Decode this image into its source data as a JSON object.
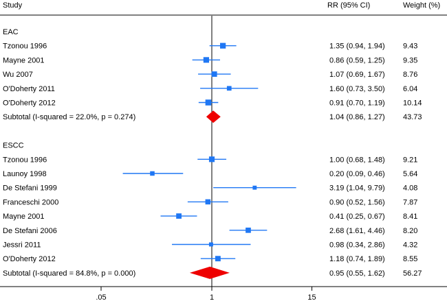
{
  "chart_data": {
    "type": "forest",
    "scale": "log",
    "reference_value": 1,
    "xlim": [
      0.0333,
      20
    ],
    "x_ticks": [
      {
        "value": 0.05,
        "label": ".05"
      },
      {
        "value": 1,
        "label": "1"
      },
      {
        "value": 15,
        "label": "15"
      }
    ],
    "headers": {
      "study": "Study",
      "rr": "RR (95% CI)",
      "weight": "Weight (%)"
    },
    "colors": {
      "study_marker": "#1f77f4",
      "ci_line": "#1f77f4",
      "subtotal_diamond": "#ee0000",
      "reference_line": "#000000"
    },
    "groups": [
      {
        "name": "EAC",
        "studies": [
          {
            "study": "Tzonou 1996",
            "rr": 1.35,
            "lo": 0.94,
            "hi": 1.94,
            "rr_text": "1.35 (0.94, 1.94)",
            "weight": 9.43,
            "weight_text": "9.43"
          },
          {
            "study": "Mayne 2001",
            "rr": 0.86,
            "lo": 0.59,
            "hi": 1.25,
            "rr_text": "0.86 (0.59, 1.25)",
            "weight": 9.35,
            "weight_text": "9.35"
          },
          {
            "study": "Wu 2007",
            "rr": 1.07,
            "lo": 0.69,
            "hi": 1.67,
            "rr_text": "1.07 (0.69, 1.67)",
            "weight": 8.76,
            "weight_text": "8.76"
          },
          {
            "study": "O'Doherty 2011",
            "rr": 1.6,
            "lo": 0.73,
            "hi": 3.5,
            "rr_text": "1.60 (0.73, 3.50)",
            "weight": 6.04,
            "weight_text": "6.04"
          },
          {
            "study": "O'Doherty 2012",
            "rr": 0.91,
            "lo": 0.7,
            "hi": 1.19,
            "rr_text": "0.91 (0.70, 1.19)",
            "weight": 10.14,
            "weight_text": "10.14"
          }
        ],
        "subtotal": {
          "label": "Subtotal  (I-squared = 22.0%, p = 0.274)",
          "rr": 1.04,
          "lo": 0.86,
          "hi": 1.27,
          "rr_text": "1.04 (0.86, 1.27)",
          "weight_text": "43.73"
        }
      },
      {
        "name": "ESCC",
        "studies": [
          {
            "study": "Tzonou 1996",
            "rr": 1.0,
            "lo": 0.68,
            "hi": 1.48,
            "rr_text": "1.00 (0.68, 1.48)",
            "weight": 9.21,
            "weight_text": "9.21"
          },
          {
            "study": "Launoy 1998",
            "rr": 0.2,
            "lo": 0.09,
            "hi": 0.46,
            "rr_text": "0.20 (0.09, 0.46)",
            "weight": 5.64,
            "weight_text": "5.64"
          },
          {
            "study": "De Stefani 1999",
            "rr": 3.19,
            "lo": 1.04,
            "hi": 9.79,
            "rr_text": "3.19 (1.04, 9.79)",
            "weight": 4.08,
            "weight_text": "4.08"
          },
          {
            "study": "Franceschi 2000",
            "rr": 0.9,
            "lo": 0.52,
            "hi": 1.56,
            "rr_text": "0.90 (0.52, 1.56)",
            "weight": 7.87,
            "weight_text": "7.87"
          },
          {
            "study": "Mayne 2001",
            "rr": 0.41,
            "lo": 0.25,
            "hi": 0.67,
            "rr_text": "0.41 (0.25, 0.67)",
            "weight": 8.41,
            "weight_text": "8.41"
          },
          {
            "study": "De Stefani 2006",
            "rr": 2.68,
            "lo": 1.61,
            "hi": 4.46,
            "rr_text": "2.68 (1.61, 4.46)",
            "weight": 8.2,
            "weight_text": "8.20"
          },
          {
            "study": "Jessri 2011",
            "rr": 0.98,
            "lo": 0.34,
            "hi": 2.86,
            "rr_text": "0.98 (0.34, 2.86)",
            "weight": 4.32,
            "weight_text": "4.32"
          },
          {
            "study": "O'Doherty 2012",
            "rr": 1.18,
            "lo": 0.74,
            "hi": 1.89,
            "rr_text": "1.18 (0.74, 1.89)",
            "weight": 8.55,
            "weight_text": "8.55"
          }
        ],
        "subtotal": {
          "label": "Subtotal  (I-squared = 84.8%, p = 0.000)",
          "rr": 0.95,
          "lo": 0.55,
          "hi": 1.62,
          "rr_text": "0.95 (0.55, 1.62)",
          "weight_text": "56.27"
        }
      }
    ]
  }
}
